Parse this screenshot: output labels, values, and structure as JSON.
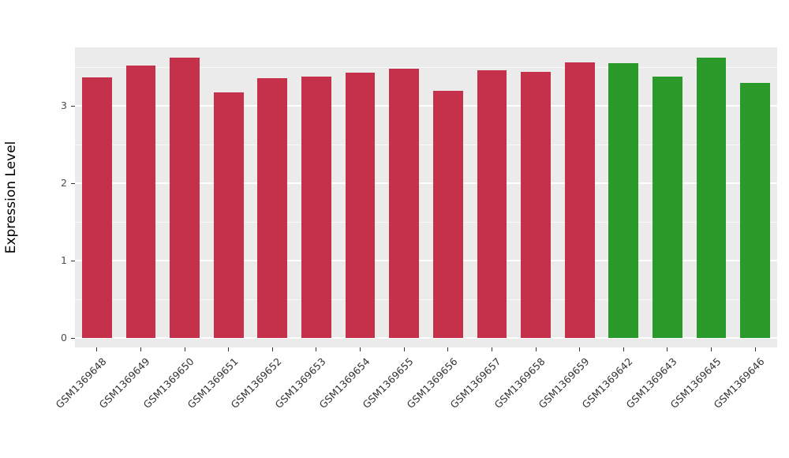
{
  "figure": {
    "background_color": "#FFFFFF",
    "panel_background_color": "#EBEBEB",
    "gridline_color": "#FFFFFF",
    "tick_color": "#333333",
    "tick_label_color": "#4D4D4D"
  },
  "chart_data": {
    "type": "bar",
    "title": "",
    "xlabel": "",
    "ylabel": "Expression Level",
    "ylim": [
      -0.12,
      3.76
    ],
    "yticks": [
      0,
      1,
      2,
      3
    ],
    "minor_gridlines": [
      0.5,
      1.5,
      2.5,
      3.5
    ],
    "grid": true,
    "legend_position": "none",
    "categories": [
      "GSM1369648",
      "GSM1369649",
      "GSM1369650",
      "GSM1369651",
      "GSM1369652",
      "GSM1369653",
      "GSM1369654",
      "GSM1369655",
      "GSM1369656",
      "GSM1369657",
      "GSM1369658",
      "GSM1369659",
      "GSM1369642",
      "GSM1369643",
      "GSM1369645",
      "GSM1369646"
    ],
    "values": [
      3.37,
      3.53,
      3.63,
      3.18,
      3.36,
      3.38,
      3.43,
      3.48,
      3.2,
      3.46,
      3.44,
      3.57,
      3.56,
      3.38,
      3.63,
      3.3
    ],
    "bar_colors": [
      "#C5304B",
      "#C5304B",
      "#C5304B",
      "#C5304B",
      "#C5304B",
      "#C5304B",
      "#C5304B",
      "#C5304B",
      "#C5304B",
      "#C5304B",
      "#C5304B",
      "#C5304B",
      "#2A9A2B",
      "#2A9A2B",
      "#2A9A2B",
      "#2A9A2B"
    ],
    "group_colors": {
      "group1": "#C5304B",
      "group2": "#2A9A2B"
    }
  }
}
